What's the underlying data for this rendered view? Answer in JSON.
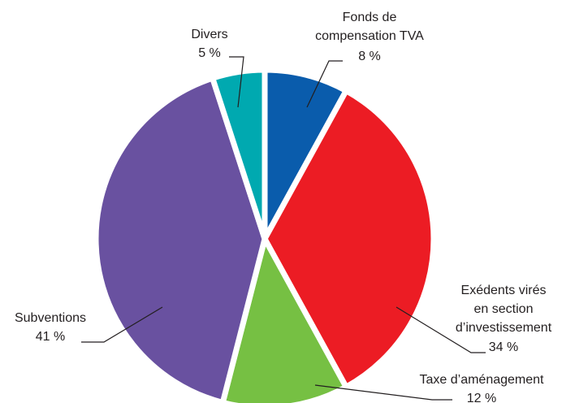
{
  "chart_data": {
    "type": "pie",
    "categories": [
      [
        "Fonds de",
        "compensation TVA"
      ],
      [
        "Exédents virés",
        "en section",
        "d’investissement"
      ],
      [
        "Taxe d’aménagement"
      ],
      [
        "Subventions"
      ],
      [
        "Divers"
      ]
    ],
    "values": [
      8,
      34,
      12,
      41,
      5
    ],
    "value_labels": [
      "8 %",
      "34 %",
      "12 %",
      "41 %",
      "5 %"
    ],
    "colors": [
      "#0a5cac",
      "#ec1c24",
      "#76c043",
      "#6951a0",
      "#00a9b0"
    ]
  }
}
